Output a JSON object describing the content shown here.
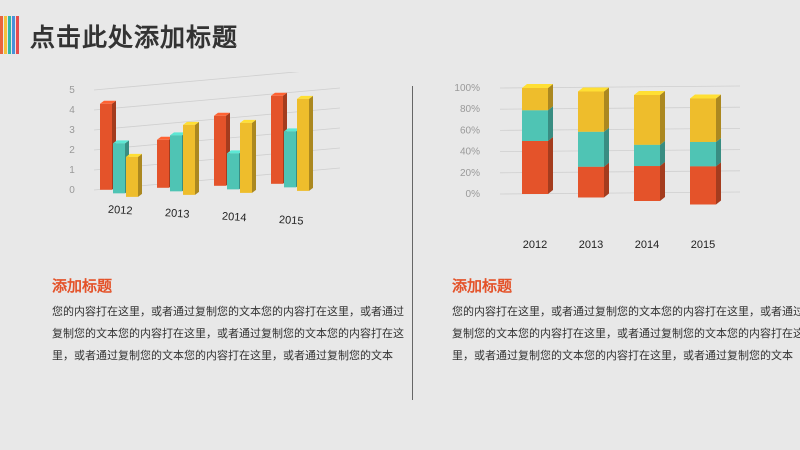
{
  "page": {
    "title": "点击此处添加标题",
    "stripe_colors": [
      "#e8643c",
      "#f2c23a",
      "#2eb8a6",
      "#4a90d9",
      "#e84c4c"
    ]
  },
  "left": {
    "subtitle": "添加标题",
    "body": "您的内容打在这里，或者通过复制您的文本您的内容打在这里，或者通过复制您的文本您的内容打在这里，或者通过复制您的文本您的内容打在这里，或者通过复制您的文本您的内容打在这里，或者通过复制您的文本"
  },
  "right": {
    "subtitle": "添加标题",
    "body": "您的内容打在这里，或者通过复制您的文本您的内容打在这里，或者通过复制您的文本您的内容打在这里，或者通过复制您的文本您的内容打在这里，或者通过复制您的文本您的内容打在这里，或者通过复制您的文本"
  },
  "colors": {
    "orange": "#e4532a",
    "teal": "#4fc4b4",
    "yellow": "#eebd2c",
    "subtitle": "#e4532a"
  },
  "chart_data": [
    {
      "type": "bar",
      "categories": [
        "2012",
        "2013",
        "2014",
        "2015"
      ],
      "series": [
        {
          "values": [
            4.3,
            2.4,
            3.5,
            4.4
          ]
        },
        {
          "values": [
            2.5,
            2.8,
            1.8,
            2.8
          ]
        },
        {
          "values": [
            2.0,
            3.5,
            3.5,
            4.6
          ]
        }
      ],
      "yticks": [
        "0",
        "1",
        "2",
        "3",
        "4",
        "5"
      ],
      "ylim": [
        0,
        5
      ],
      "grid": true,
      "view": "3d"
    },
    {
      "type": "bar",
      "stacked": true,
      "percent": true,
      "categories": [
        "2012",
        "2013",
        "2014",
        "2015"
      ],
      "series": [
        {
          "values": [
            50,
            29,
            33,
            36
          ]
        },
        {
          "values": [
            29,
            33,
            20,
            23
          ]
        },
        {
          "values": [
            21,
            38,
            47,
            41
          ]
        }
      ],
      "yticks": [
        "0%",
        "20%",
        "40%",
        "60%",
        "80%",
        "100%"
      ],
      "ylim": [
        0,
        100
      ],
      "grid": true,
      "view": "3d"
    }
  ]
}
